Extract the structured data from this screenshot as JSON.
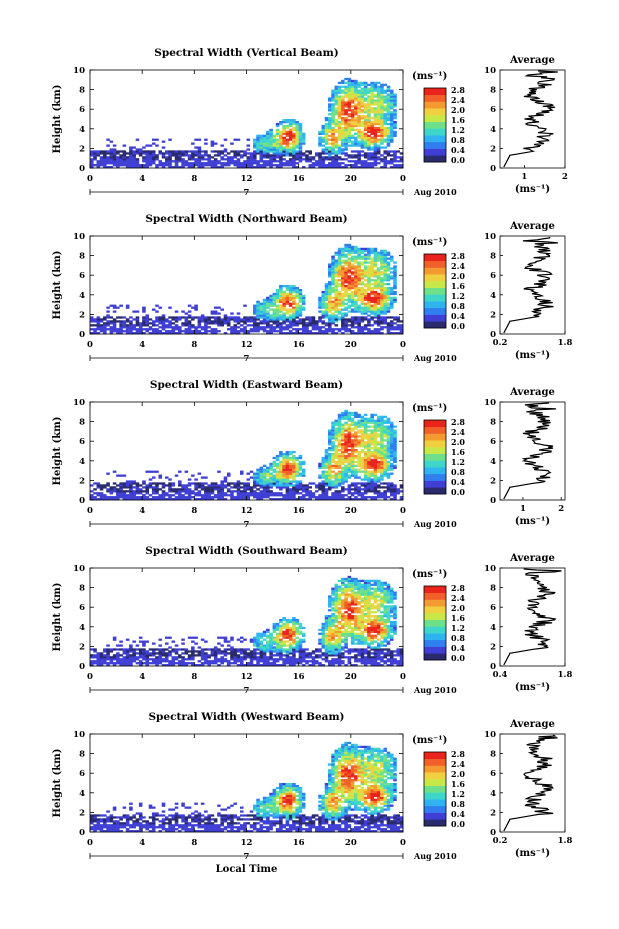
{
  "chart_data": [
    {
      "type": "heatmap",
      "title": "Spectral Width (Vertical Beam)",
      "ylabel": "Height (km)",
      "xlabel": "",
      "x_ticks": [
        "0",
        "4",
        "8",
        "12",
        "16",
        "20",
        "0"
      ],
      "y_ticks": [
        "0",
        "2",
        "4",
        "6",
        "8",
        "10"
      ],
      "xlim": [
        0,
        24
      ],
      "ylim": [
        0,
        10
      ],
      "date_label": "7",
      "date_suffix": "Aug 2010",
      "colorbar": {
        "unit": "(ms⁻¹)",
        "ticks": [
          "0.0",
          "0.4",
          "0.8",
          "1.2",
          "1.6",
          "2.0",
          "2.4",
          "2.8"
        ]
      },
      "profile": {
        "title": "Average",
        "xlabel": "(ms⁻¹)",
        "x_ticks": [
          "1",
          "2"
        ],
        "xlim": [
          0.4,
          2.0
        ],
        "y_ticks": [
          "0",
          "2",
          "4",
          "6",
          "8",
          "10"
        ]
      }
    },
    {
      "type": "heatmap",
      "title": "Spectral Width (Northward Beam)",
      "ylabel": "Height (km)",
      "xlabel": "",
      "x_ticks": [
        "0",
        "4",
        "8",
        "12",
        "16",
        "20",
        "0"
      ],
      "y_ticks": [
        "0",
        "2",
        "4",
        "6",
        "8",
        "10"
      ],
      "xlim": [
        0,
        24
      ],
      "ylim": [
        0,
        10
      ],
      "date_label": "7",
      "date_suffix": "Aug 2010",
      "colorbar": {
        "unit": "(ms⁻¹)",
        "ticks": [
          "0.0",
          "0.4",
          "0.8",
          "1.2",
          "1.6",
          "2.0",
          "2.4",
          "2.8"
        ]
      },
      "profile": {
        "title": "Average",
        "xlabel": "(ms⁻¹)",
        "x_ticks": [
          "0.2",
          "1.8"
        ],
        "xlim": [
          0.2,
          1.8
        ],
        "y_ticks": [
          "0",
          "2",
          "4",
          "6",
          "8",
          "10"
        ]
      }
    },
    {
      "type": "heatmap",
      "title": "Spectral Width (Eastward Beam)",
      "ylabel": "Height (km)",
      "xlabel": "",
      "x_ticks": [
        "0",
        "4",
        "8",
        "12",
        "16",
        "20",
        "0"
      ],
      "y_ticks": [
        "0",
        "2",
        "4",
        "6",
        "8",
        "10"
      ],
      "xlim": [
        0,
        24
      ],
      "ylim": [
        0,
        10
      ],
      "date_label": "7",
      "date_suffix": "Aug 2010",
      "colorbar": {
        "unit": "(ms⁻¹)",
        "ticks": [
          "0.0",
          "0.4",
          "0.8",
          "1.2",
          "1.6",
          "2.0",
          "2.4",
          "2.8"
        ]
      },
      "profile": {
        "title": "Average",
        "xlabel": "(ms⁻¹)",
        "x_ticks": [
          "1",
          "2"
        ],
        "xlim": [
          0.4,
          2.1
        ],
        "y_ticks": [
          "0",
          "2",
          "4",
          "6",
          "8",
          "10"
        ]
      }
    },
    {
      "type": "heatmap",
      "title": "Spectral Width (Southward Beam)",
      "ylabel": "Height (km)",
      "xlabel": "",
      "x_ticks": [
        "0",
        "4",
        "8",
        "12",
        "16",
        "20",
        "0"
      ],
      "y_ticks": [
        "0",
        "2",
        "4",
        "6",
        "8",
        "10"
      ],
      "xlim": [
        0,
        24
      ],
      "ylim": [
        0,
        10
      ],
      "date_label": "7",
      "date_suffix": "Aug 2010",
      "colorbar": {
        "unit": "(ms⁻¹)",
        "ticks": [
          "0.0",
          "0.4",
          "0.8",
          "1.2",
          "1.6",
          "2.0",
          "2.4",
          "2.8"
        ]
      },
      "profile": {
        "title": "Average",
        "xlabel": "(ms⁻¹)",
        "x_ticks": [
          "0.4",
          "1.8"
        ],
        "xlim": [
          0.4,
          1.8
        ],
        "y_ticks": [
          "0",
          "2",
          "4",
          "6",
          "8",
          "10"
        ]
      }
    },
    {
      "type": "heatmap",
      "title": "Spectral Width (Westward Beam)",
      "ylabel": "Height (km)",
      "xlabel": "Local Time",
      "x_ticks": [
        "0",
        "4",
        "8",
        "12",
        "16",
        "20",
        "0"
      ],
      "y_ticks": [
        "0",
        "2",
        "4",
        "6",
        "8",
        "10"
      ],
      "xlim": [
        0,
        24
      ],
      "ylim": [
        0,
        10
      ],
      "date_label": "7",
      "date_suffix": "Aug 2010",
      "colorbar": {
        "unit": "(ms⁻¹)",
        "ticks": [
          "0.0",
          "0.4",
          "0.8",
          "1.2",
          "1.6",
          "2.0",
          "2.4",
          "2.8"
        ]
      },
      "profile": {
        "title": "Average",
        "xlabel": "(ms⁻¹)",
        "x_ticks": [
          "0.2",
          "1.8"
        ],
        "xlim": [
          0.2,
          1.8
        ],
        "y_ticks": [
          "0",
          "2",
          "4",
          "6",
          "8",
          "10"
        ]
      }
    }
  ],
  "colors": {
    "scale": [
      "#2a2a6e",
      "#3f3fd6",
      "#2f7fee",
      "#30b4f0",
      "#3ed6c8",
      "#6fe08a",
      "#c8e84a",
      "#f0d040",
      "#f39a30",
      "#f06028",
      "#e8241c"
    ]
  }
}
